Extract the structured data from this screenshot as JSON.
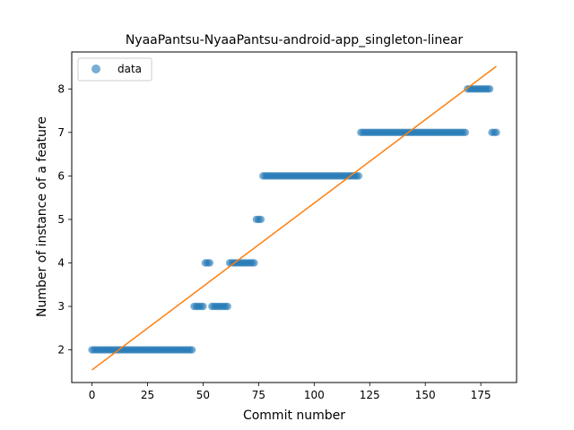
{
  "chart_data": {
    "type": "scatter",
    "title": "NyaaPantsu-NyaaPantsu-android-app_singleton-linear",
    "xlabel": "Commit number",
    "ylabel": "Number of instance of a feature",
    "xlim": [
      -9.1,
      191.1
    ],
    "ylim": [
      1.25,
      8.85
    ],
    "xticks": [
      0,
      25,
      50,
      75,
      100,
      125,
      150,
      175
    ],
    "yticks": [
      2,
      3,
      4,
      5,
      6,
      7,
      8
    ],
    "legend": {
      "position": "top-left",
      "entries": [
        "data"
      ]
    },
    "grid": false,
    "colors": {
      "data": "#1f77b4",
      "fit": "#ff7f0e"
    },
    "series": [
      {
        "name": "data",
        "kind": "scatter",
        "segments": [
          {
            "x_start": 0,
            "x_end": 45,
            "y": 2
          },
          {
            "x_start": 46,
            "x_end": 50,
            "y": 3
          },
          {
            "x_start": 51,
            "x_end": 53,
            "y": 4
          },
          {
            "x_start": 54,
            "x_end": 61,
            "y": 3
          },
          {
            "x_start": 62,
            "x_end": 73,
            "y": 4
          },
          {
            "x_start": 74,
            "x_end": 76,
            "y": 5
          },
          {
            "x_start": 77,
            "x_end": 120,
            "y": 6
          },
          {
            "x_start": 121,
            "x_end": 168,
            "y": 7
          },
          {
            "x_start": 169,
            "x_end": 179,
            "y": 8
          },
          {
            "x_start": 180,
            "x_end": 182,
            "y": 7
          }
        ]
      },
      {
        "kind": "line",
        "x": [
          0,
          182
        ],
        "y": [
          1.54,
          8.52
        ]
      }
    ]
  }
}
